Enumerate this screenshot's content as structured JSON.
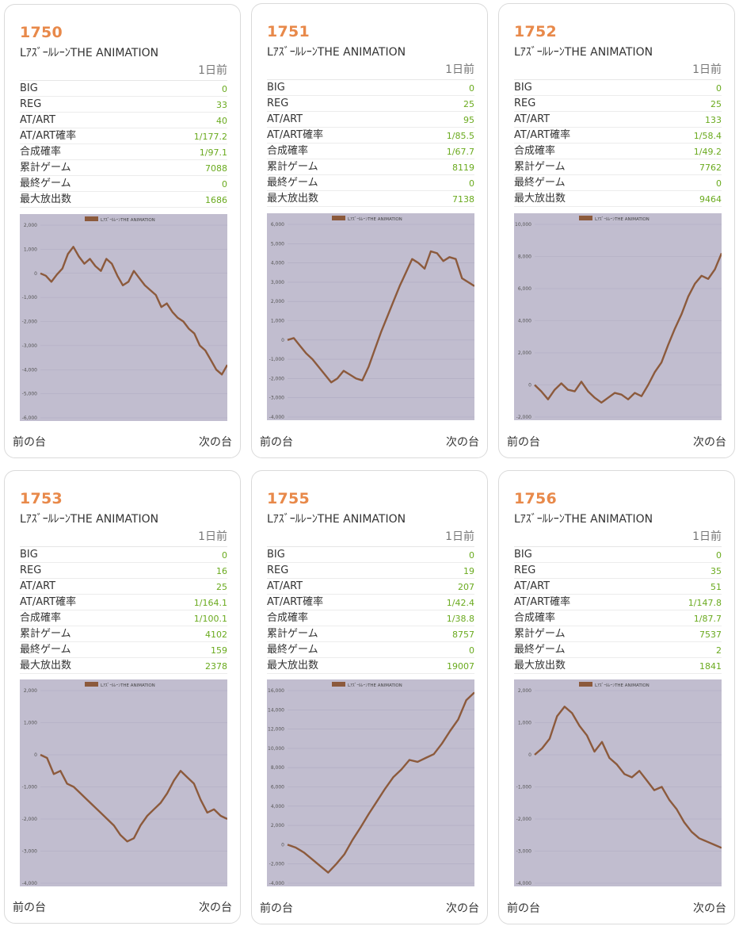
{
  "labels": {
    "period": "1日前",
    "prev": "前の台",
    "next": "次の台"
  },
  "colors": {
    "number": "#e8894a",
    "value": "#6aaa1e",
    "chart_bg": "#c1bdcf",
    "line": "#8c5a3c"
  },
  "cards": [
    {
      "number": "1750",
      "model": "LｱｽﾞｰﾙﾚｰﾝTHE ANIMATION",
      "stats": [
        {
          "label": "BIG",
          "value": "0"
        },
        {
          "label": "REG",
          "value": "33"
        },
        {
          "label": "AT/ART",
          "value": "40"
        },
        {
          "label": "AT/ART確率",
          "value": "1/177.2"
        },
        {
          "label": "合成確率",
          "value": "1/97.1"
        },
        {
          "label": "累計ゲーム",
          "value": "7088"
        },
        {
          "label": "最終ゲーム",
          "value": "0"
        },
        {
          "label": "最大放出数",
          "value": "1686"
        }
      ],
      "chart_data": {
        "type": "line",
        "legend": "LｱｽﾞｰﾙﾚｰﾝTHE ANIMATION",
        "ylim": [
          -6000,
          2000
        ],
        "yticks": [
          "2,000",
          "1,000",
          "0",
          "-1,000",
          "-2,000",
          "-3,000",
          "-4,000",
          "-5,000",
          "-6,000"
        ],
        "values": [
          0,
          -100,
          -350,
          -50,
          200,
          800,
          1100,
          700,
          400,
          600,
          300,
          100,
          600,
          400,
          -100,
          -500,
          -350,
          100,
          -200,
          -500,
          -700,
          -900,
          -1400,
          -1250,
          -1600,
          -1850,
          -2000,
          -2300,
          -2500,
          -3000,
          -3200,
          -3600,
          -4000,
          -4200,
          -3800
        ]
      }
    },
    {
      "number": "1751",
      "model": "LｱｽﾞｰﾙﾚｰﾝTHE ANIMATION",
      "stats": [
        {
          "label": "BIG",
          "value": "0"
        },
        {
          "label": "REG",
          "value": "25"
        },
        {
          "label": "AT/ART",
          "value": "95"
        },
        {
          "label": "AT/ART確率",
          "value": "1/85.5"
        },
        {
          "label": "合成確率",
          "value": "1/67.7"
        },
        {
          "label": "累計ゲーム",
          "value": "8119"
        },
        {
          "label": "最終ゲーム",
          "value": "0"
        },
        {
          "label": "最大放出数",
          "value": "7138"
        }
      ],
      "chart_data": {
        "type": "line",
        "legend": "LｱｽﾞｰﾙﾚｰﾝTHE ANIMATION",
        "ylim": [
          -4000,
          6000
        ],
        "yticks": [
          "6,000",
          "5,000",
          "4,000",
          "3,000",
          "2,000",
          "1,000",
          "0",
          "-1,000",
          "-2,000",
          "-3,000",
          "-4,000"
        ],
        "values": [
          0,
          100,
          -300,
          -700,
          -1000,
          -1400,
          -1800,
          -2200,
          -2000,
          -1600,
          -1800,
          -2000,
          -2100,
          -1400,
          -500,
          400,
          1200,
          2000,
          2800,
          3500,
          4200,
          4000,
          3700,
          4600,
          4500,
          4100,
          4300,
          4200,
          3200,
          3000,
          2800
        ]
      }
    },
    {
      "number": "1752",
      "model": "LｱｽﾞｰﾙﾚｰﾝTHE ANIMATION",
      "stats": [
        {
          "label": "BIG",
          "value": "0"
        },
        {
          "label": "REG",
          "value": "25"
        },
        {
          "label": "AT/ART",
          "value": "133"
        },
        {
          "label": "AT/ART確率",
          "value": "1/58.4"
        },
        {
          "label": "合成確率",
          "value": "1/49.2"
        },
        {
          "label": "累計ゲーム",
          "value": "7762"
        },
        {
          "label": "最終ゲーム",
          "value": "0"
        },
        {
          "label": "最大放出数",
          "value": "9464"
        }
      ],
      "chart_data": {
        "type": "line",
        "legend": "LｱｽﾞｰﾙﾚｰﾝTHE ANIMATION",
        "ylim": [
          -2000,
          10000
        ],
        "yticks": [
          "10,000",
          "8,000",
          "6,000",
          "4,000",
          "2,000",
          "0",
          "-2,000"
        ],
        "values": [
          0,
          -400,
          -900,
          -300,
          100,
          -300,
          -400,
          200,
          -400,
          -800,
          -1100,
          -800,
          -500,
          -600,
          -900,
          -500,
          -700,
          0,
          800,
          1400,
          2500,
          3500,
          4400,
          5500,
          6300,
          6800,
          6600,
          7200,
          8200
        ]
      }
    },
    {
      "number": "1753",
      "model": "LｱｽﾞｰﾙﾚｰﾝTHE ANIMATION",
      "stats": [
        {
          "label": "BIG",
          "value": "0"
        },
        {
          "label": "REG",
          "value": "16"
        },
        {
          "label": "AT/ART",
          "value": "25"
        },
        {
          "label": "AT/ART確率",
          "value": "1/164.1"
        },
        {
          "label": "合成確率",
          "value": "1/100.1"
        },
        {
          "label": "累計ゲーム",
          "value": "4102"
        },
        {
          "label": "最終ゲーム",
          "value": "159"
        },
        {
          "label": "最大放出数",
          "value": "2378"
        }
      ],
      "chart_data": {
        "type": "line",
        "legend": "LｱｽﾞｰﾙﾚｰﾝTHE ANIMATION",
        "ylim": [
          -4000,
          2000
        ],
        "yticks": [
          "2,000",
          "1,000",
          "0",
          "-1,000",
          "-2,000",
          "-3,000",
          "-4,000"
        ],
        "values": [
          0,
          -100,
          -600,
          -500,
          -900,
          -1000,
          -1200,
          -1400,
          -1600,
          -1800,
          -2000,
          -2200,
          -2500,
          -2700,
          -2600,
          -2200,
          -1900,
          -1700,
          -1500,
          -1200,
          -800,
          -500,
          -700,
          -900,
          -1400,
          -1800,
          -1700,
          -1900,
          -2000
        ]
      }
    },
    {
      "number": "1755",
      "model": "LｱｽﾞｰﾙﾚｰﾝTHE ANIMATION",
      "stats": [
        {
          "label": "BIG",
          "value": "0"
        },
        {
          "label": "REG",
          "value": "19"
        },
        {
          "label": "AT/ART",
          "value": "207"
        },
        {
          "label": "AT/ART確率",
          "value": "1/42.4"
        },
        {
          "label": "合成確率",
          "value": "1/38.8"
        },
        {
          "label": "累計ゲーム",
          "value": "8757"
        },
        {
          "label": "最終ゲーム",
          "value": "0"
        },
        {
          "label": "最大放出数",
          "value": "19007"
        }
      ],
      "chart_data": {
        "type": "line",
        "legend": "LｱｽﾞｰﾙﾚｰﾝTHE ANIMATION",
        "ylim": [
          -4000,
          16000
        ],
        "yticks": [
          "16,000",
          "14,000",
          "12,000",
          "10,000",
          "8,000",
          "6,000",
          "4,000",
          "2,000",
          "0",
          "-2,000",
          "-4,000"
        ],
        "values": [
          0,
          -300,
          -800,
          -1500,
          -2200,
          -2900,
          -2000,
          -1000,
          500,
          1800,
          3200,
          4500,
          5800,
          7000,
          7800,
          8800,
          8600,
          9000,
          9400,
          10500,
          11800,
          13000,
          15000,
          15800
        ]
      }
    },
    {
      "number": "1756",
      "model": "LｱｽﾞｰﾙﾚｰﾝTHE ANIMATION",
      "stats": [
        {
          "label": "BIG",
          "value": "0"
        },
        {
          "label": "REG",
          "value": "35"
        },
        {
          "label": "AT/ART",
          "value": "51"
        },
        {
          "label": "AT/ART確率",
          "value": "1/147.8"
        },
        {
          "label": "合成確率",
          "value": "1/87.7"
        },
        {
          "label": "累計ゲーム",
          "value": "7537"
        },
        {
          "label": "最終ゲーム",
          "value": "2"
        },
        {
          "label": "最大放出数",
          "value": "1841"
        }
      ],
      "chart_data": {
        "type": "line",
        "legend": "LｱｽﾞｰﾙﾚｰﾝTHE ANIMATION",
        "ylim": [
          -4000,
          2000
        ],
        "yticks": [
          "2,000",
          "1,000",
          "0",
          "-1,000",
          "-2,000",
          "-3,000",
          "-4,000"
        ],
        "values": [
          0,
          200,
          500,
          1200,
          1500,
          1300,
          900,
          600,
          100,
          400,
          -100,
          -300,
          -600,
          -700,
          -500,
          -800,
          -1100,
          -1000,
          -1400,
          -1700,
          -2100,
          -2400,
          -2600,
          -2700,
          -2800,
          -2900
        ]
      }
    }
  ]
}
